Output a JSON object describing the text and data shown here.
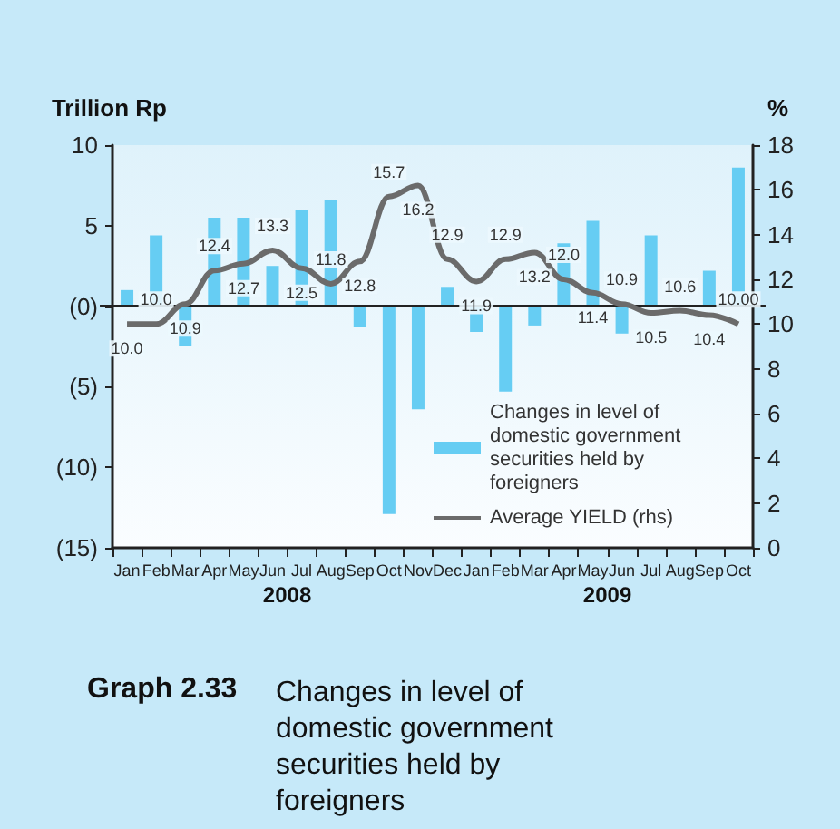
{
  "chart_data": {
    "type": "bar",
    "ylabel": "Trillion Rp",
    "y2label": "%",
    "categories": [
      "Jan",
      "Feb",
      "Mar",
      "Apr",
      "May",
      "Jun",
      "Jul",
      "Aug",
      "Sep",
      "Oct",
      "Nov",
      "Dec",
      "Jan",
      "Feb",
      "Mar",
      "Apr",
      "May",
      "Jun",
      "Jul",
      "Aug",
      "Sep",
      "Oct"
    ],
    "series": [
      {
        "name": "Changes in level of domestic government securities held by foreigners",
        "color": "#66cdf3",
        "values": [
          1.0,
          4.4,
          -2.5,
          5.5,
          5.5,
          2.5,
          6.0,
          6.6,
          -1.3,
          -12.9,
          -6.4,
          1.2,
          -1.6,
          -5.3,
          -1.2,
          3.9,
          5.3,
          -1.7,
          4.4,
          null,
          2.2,
          8.6
        ]
      },
      {
        "name": "Average YIELD (rhs)",
        "type": "line",
        "axis": "y2",
        "color": "#6b6b6b",
        "values": [
          10.0,
          10.0,
          10.9,
          12.4,
          12.7,
          13.3,
          12.5,
          11.8,
          12.8,
          15.7,
          16.2,
          12.9,
          11.9,
          12.9,
          13.2,
          12.0,
          11.4,
          10.9,
          10.5,
          10.6,
          10.4,
          10.0
        ],
        "value_labels": [
          "10.0",
          "10.0",
          "10.9",
          "12.4",
          "12.7",
          "13.3",
          "12.5",
          "11.8",
          "12.8",
          "15.7",
          "16.2",
          "12.9",
          "11.9",
          "12.9",
          "13.2",
          "12.0",
          "11.4",
          "10.9",
          "10.5",
          "10.6",
          "10.4",
          "10.00"
        ]
      }
    ],
    "ylim": [
      -15,
      10
    ],
    "yticks": [
      {
        "value": -15,
        "label": "(15)"
      },
      {
        "value": -10,
        "label": "(10)"
      },
      {
        "value": -5,
        "label": "(5)"
      },
      {
        "value": 0,
        "label": "(0)"
      },
      5,
      10
    ],
    "y2lim": [
      0,
      18
    ],
    "y2ticks": [
      0,
      2,
      4,
      6,
      8,
      10,
      12,
      14,
      16,
      18
    ],
    "ref_lines": [
      {
        "axis": "y",
        "value": 0,
        "color": "#222222"
      }
    ],
    "legend": "bottom right",
    "grid": false,
    "marker": "none",
    "line_style": "solid",
    "annotations": [
      "2008",
      "2009",
      "Graph 2.33",
      "Changes in level of domestic government securities held by foreigners"
    ]
  }
}
